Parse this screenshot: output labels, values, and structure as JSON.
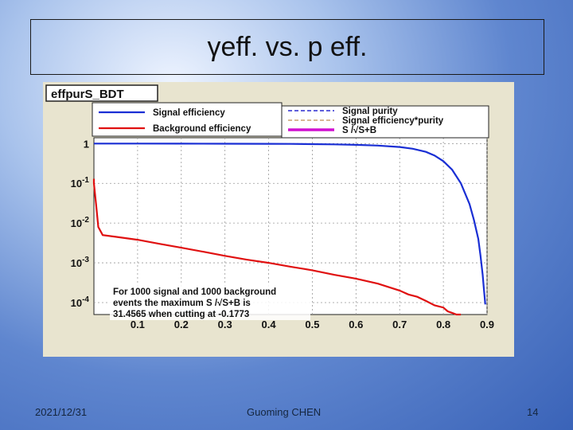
{
  "slide": {
    "title": "γeff. vs. p eff.",
    "footer_date": "2021/12/31",
    "footer_author": "Guoming CHEN",
    "footer_page": "14"
  },
  "chart_data": {
    "type": "line",
    "title": "effpurS_BDT",
    "yscale": "log",
    "xlim": [
      0,
      0.9
    ],
    "ylim": [
      5e-05,
      1.4
    ],
    "x_ticks": [
      0.1,
      0.2,
      0.3,
      0.4,
      0.5,
      0.6,
      0.7,
      0.8,
      0.9
    ],
    "x_tick_labels": [
      "0.1",
      "0.2",
      "0.3",
      "0.4",
      "0.5",
      "0.6",
      "0.7",
      "0.8",
      "0.9"
    ],
    "y_ticks": [
      1,
      0.1,
      0.01,
      0.001,
      0.0001
    ],
    "y_tick_labels": [
      {
        "base": "1",
        "exp": ""
      },
      {
        "base": "10",
        "exp": "-1"
      },
      {
        "base": "10",
        "exp": "-2"
      },
      {
        "base": "10",
        "exp": "-3"
      },
      {
        "base": "10",
        "exp": "-4"
      }
    ],
    "legend_left": [
      {
        "label": "Signal efficiency",
        "color": "#1a2fd4",
        "style": "solid"
      },
      {
        "label": "Background efficiency",
        "color": "#e01010",
        "style": "solid"
      }
    ],
    "legend_right": [
      {
        "label": "Signal purity",
        "color": "#2a2ad0",
        "style": "dashed"
      },
      {
        "label": "Signal efficiency*purity",
        "color": "#c8a070",
        "style": "dashed"
      },
      {
        "label": "S /√S+B",
        "color": "#d010d0",
        "style": "solid"
      }
    ],
    "annotation": [
      "For 1000 signal and 1000 background",
      "events the maximum S /√S+B is",
      "31.4565 when cutting at -0.1773"
    ],
    "series": [
      {
        "name": "Signal efficiency",
        "color": "#1a2fd4",
        "x": [
          0.0,
          0.1,
          0.2,
          0.3,
          0.4,
          0.45,
          0.5,
          0.55,
          0.6,
          0.65,
          0.7,
          0.73,
          0.76,
          0.78,
          0.8,
          0.82,
          0.84,
          0.86,
          0.87,
          0.88,
          0.885,
          0.89,
          0.893,
          0.896
        ],
        "y": [
          1.0,
          1.0,
          0.995,
          0.99,
          0.985,
          0.98,
          0.97,
          0.955,
          0.93,
          0.89,
          0.82,
          0.74,
          0.62,
          0.5,
          0.36,
          0.22,
          0.1,
          0.03,
          0.012,
          0.004,
          0.0015,
          0.0005,
          0.0002,
          9e-05
        ]
      },
      {
        "name": "Background efficiency",
        "color": "#e01010",
        "x": [
          0.0,
          0.0,
          0.005,
          0.01,
          0.02,
          0.05,
          0.1,
          0.15,
          0.2,
          0.25,
          0.3,
          0.35,
          0.4,
          0.45,
          0.5,
          0.55,
          0.6,
          0.65,
          0.7,
          0.72,
          0.74,
          0.76,
          0.78,
          0.8,
          0.81,
          0.82,
          0.83,
          0.84
        ],
        "y": [
          0.13,
          0.1,
          0.03,
          0.008,
          0.005,
          0.0045,
          0.0038,
          0.003,
          0.0024,
          0.0019,
          0.0015,
          0.0012,
          0.001,
          0.0008,
          0.00065,
          0.0005,
          0.0004,
          0.0003,
          0.0002,
          0.00016,
          0.00014,
          0.00011,
          8.5e-05,
          7.5e-05,
          6e-05,
          5.5e-05,
          5e-05,
          5e-05
        ]
      }
    ]
  }
}
